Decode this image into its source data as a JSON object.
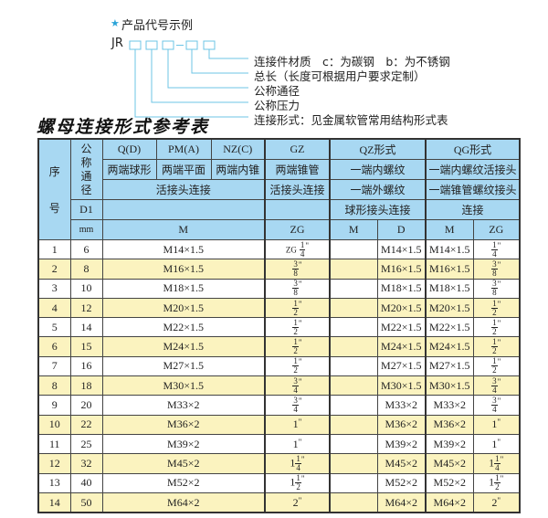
{
  "diagram": {
    "star_icon": "star-icon",
    "title": "产品代号示例",
    "code_prefix": "JR",
    "labels": [
      "连接件材质　c：为碳钢　b：为不锈钢",
      "总长（长度可根据用户要求定制）",
      "公称通径",
      "公称压力",
      "连接形式：见金属软管常用结构形式表"
    ],
    "accent_color": "#2aa3d8"
  },
  "table_title": "螺母连接形式参考表",
  "table": {
    "header": {
      "seq": "序号",
      "nominal": "公称通径",
      "d1": "D1",
      "mm": "mm",
      "q": "Q(D)",
      "pm": "PM(A)",
      "nz": "NZ(C)",
      "gz": "GZ",
      "qz": "QZ形式",
      "qg": "QG形式",
      "q2": "两端球形",
      "pm2": "两端平面",
      "nz2": "两端内锥",
      "gz2": "两端锥管",
      "qz2": "一端内螺纹",
      "qg2": "一端内螺纹活接头",
      "union": "活接头连接",
      "gz3": "活接头连接",
      "qz3": "一端外螺纹",
      "qg3": "一端锥管螺纹接头",
      "qz4": "球形接头连接",
      "qg4": "连接",
      "m": "M",
      "zg": "ZG",
      "qz_m": "M",
      "qz_d": "D",
      "qg_m": "M",
      "qg_zg": "ZG"
    },
    "rows": [
      {
        "no": "1",
        "d1": "6",
        "m": "M14×1.5",
        "zg": {
          "pre": "ZG",
          "whole": "",
          "num": "1",
          "den": "4"
        },
        "qz_m": "",
        "qz_d": "M14×1.5",
        "qg_m": "M14×1.5",
        "qg_zg": {
          "whole": "",
          "num": "1",
          "den": "4"
        }
      },
      {
        "no": "2",
        "d1": "8",
        "m": "M16×1.5",
        "zg": {
          "pre": "",
          "whole": "",
          "num": "3",
          "den": "8"
        },
        "qz_m": "",
        "qz_d": "M16×1.5",
        "qg_m": "M16×1.5",
        "qg_zg": {
          "whole": "",
          "num": "3",
          "den": "8"
        }
      },
      {
        "no": "3",
        "d1": "10",
        "m": "M18×1.5",
        "zg": {
          "pre": "",
          "whole": "",
          "num": "3",
          "den": "8"
        },
        "qz_m": "",
        "qz_d": "M18×1.5",
        "qg_m": "M18×1.5",
        "qg_zg": {
          "whole": "",
          "num": "3",
          "den": "8"
        }
      },
      {
        "no": "4",
        "d1": "12",
        "m": "M20×1.5",
        "zg": {
          "pre": "",
          "whole": "",
          "num": "1",
          "den": "2"
        },
        "qz_m": "",
        "qz_d": "M20×1.5",
        "qg_m": "M20×1.5",
        "qg_zg": {
          "whole": "",
          "num": "1",
          "den": "2"
        }
      },
      {
        "no": "5",
        "d1": "14",
        "m": "M22×1.5",
        "zg": {
          "pre": "",
          "whole": "",
          "num": "1",
          "den": "2"
        },
        "qz_m": "",
        "qz_d": "M22×1.5",
        "qg_m": "M22×1.5",
        "qg_zg": {
          "whole": "",
          "num": "1",
          "den": "2"
        }
      },
      {
        "no": "6",
        "d1": "15",
        "m": "M24×1.5",
        "zg": {
          "pre": "",
          "whole": "",
          "num": "1",
          "den": "2"
        },
        "qz_m": "",
        "qz_d": "M24×1.5",
        "qg_m": "M24×1.5",
        "qg_zg": {
          "whole": "",
          "num": "1",
          "den": "2"
        }
      },
      {
        "no": "7",
        "d1": "16",
        "m": "M27×1.5",
        "zg": {
          "pre": "",
          "whole": "",
          "num": "1",
          "den": "2"
        },
        "qz_m": "",
        "qz_d": "M27×1.5",
        "qg_m": "M27×1.5",
        "qg_zg": {
          "whole": "",
          "num": "1",
          "den": "2"
        }
      },
      {
        "no": "8",
        "d1": "18",
        "m": "M30×1.5",
        "zg": {
          "pre": "",
          "whole": "",
          "num": "3",
          "den": "4"
        },
        "qz_m": "",
        "qz_d": "M30×1.5",
        "qg_m": "M30×1.5",
        "qg_zg": {
          "whole": "",
          "num": "3",
          "den": "4"
        }
      },
      {
        "no": "9",
        "d1": "20",
        "m": "M33×2",
        "zg": {
          "pre": "",
          "whole": "",
          "num": "3",
          "den": "4"
        },
        "qz_m": "",
        "qz_d": "M33×2",
        "qg_m": "M33×2",
        "qg_zg": {
          "whole": "",
          "num": "3",
          "den": "4"
        }
      },
      {
        "no": "10",
        "d1": "22",
        "m": "M36×2",
        "zg": {
          "pre": "",
          "whole": "1",
          "num": "",
          "den": ""
        },
        "qz_m": "",
        "qz_d": "M36×2",
        "qg_m": "M36×2",
        "qg_zg": {
          "whole": "1",
          "num": "",
          "den": ""
        }
      },
      {
        "no": "11",
        "d1": "25",
        "m": "M39×2",
        "zg": {
          "pre": "",
          "whole": "1",
          "num": "",
          "den": ""
        },
        "qz_m": "",
        "qz_d": "M39×2",
        "qg_m": "M39×2",
        "qg_zg": {
          "whole": "1",
          "num": "",
          "den": ""
        }
      },
      {
        "no": "12",
        "d1": "32",
        "m": "M45×2",
        "zg": {
          "pre": "",
          "whole": "1",
          "num": "1",
          "den": "4"
        },
        "qz_m": "",
        "qz_d": "M45×2",
        "qg_m": "M45×2",
        "qg_zg": {
          "whole": "1",
          "num": "1",
          "den": "4"
        }
      },
      {
        "no": "13",
        "d1": "40",
        "m": "M52×2",
        "zg": {
          "pre": "",
          "whole": "1",
          "num": "1",
          "den": "2"
        },
        "qz_m": "",
        "qz_d": "M52×2",
        "qg_m": "M52×2",
        "qg_zg": {
          "whole": "1",
          "num": "1",
          "den": "2"
        }
      },
      {
        "no": "14",
        "d1": "50",
        "m": "M64×2",
        "zg": {
          "pre": "",
          "whole": "2",
          "num": "",
          "den": ""
        },
        "qz_m": "",
        "qz_d": "M64×2",
        "qg_m": "M64×2",
        "qg_zg": {
          "whole": "2",
          "num": "",
          "den": ""
        }
      }
    ],
    "inch_mark": "\"",
    "colors": {
      "header_bg": "#a8d8f2",
      "even_row_bg": "#fbf3bf",
      "odd_row_bg": "#ffffff"
    }
  }
}
